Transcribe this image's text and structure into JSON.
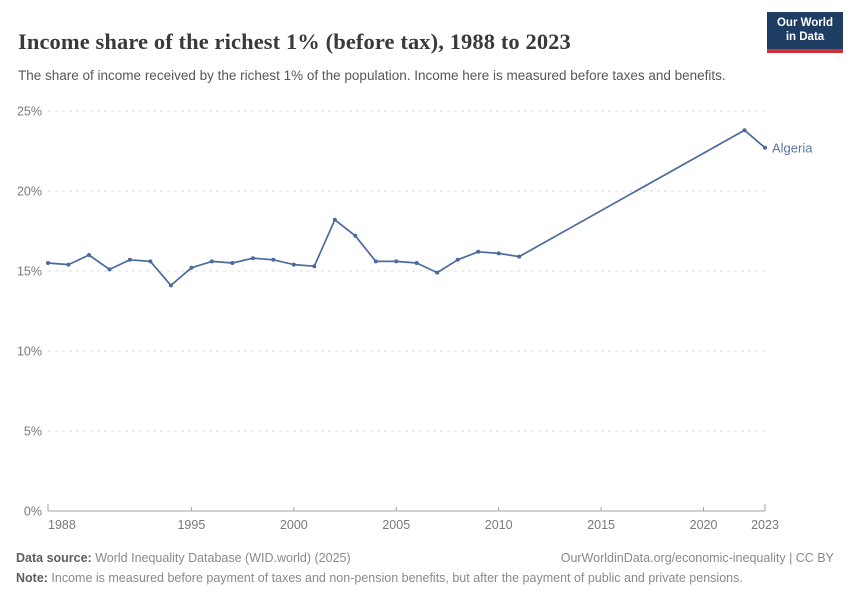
{
  "header": {
    "title": "Income share of the richest 1% (before tax), 1988 to 2023",
    "subtitle": "The share of income received by the richest 1% of the population. Income here is measured before taxes and benefits.",
    "logo": {
      "line1": "Our World",
      "line2": "in Data"
    }
  },
  "chart_data": {
    "type": "line",
    "title": "Income share of the richest 1% (before tax), 1988 to 2023",
    "xlabel": "",
    "ylabel": "",
    "xlim": [
      1988,
      2023
    ],
    "ylim": [
      0,
      25
    ],
    "x_ticks": [
      1988,
      1995,
      2000,
      2005,
      2010,
      2015,
      2020,
      2023
    ],
    "y_ticks": [
      0,
      5,
      10,
      15,
      20,
      25
    ],
    "y_tick_suffix": "%",
    "grid": "horizontal-dashed",
    "legend_position": "end-of-line-label",
    "series": [
      {
        "name": "Algeria",
        "color": "#4C6A9C",
        "x": [
          1988,
          1989,
          1990,
          1991,
          1992,
          1993,
          1994,
          1995,
          1996,
          1997,
          1998,
          1999,
          2000,
          2001,
          2002,
          2003,
          2004,
          2005,
          2006,
          2007,
          2008,
          2009,
          2010,
          2011,
          2022,
          2023
        ],
        "values": [
          15.5,
          15.4,
          16.0,
          15.1,
          15.7,
          15.6,
          14.1,
          15.2,
          15.6,
          15.5,
          15.8,
          15.7,
          15.4,
          15.3,
          18.2,
          17.2,
          15.6,
          15.6,
          15.5,
          14.9,
          15.7,
          16.2,
          16.1,
          15.9,
          23.8,
          22.7
        ]
      }
    ]
  },
  "footer": {
    "datasource_label": "Data source:",
    "datasource_text": " World Inequality Database (WID.world) (2025)",
    "url_text": "OurWorldinData.org/economic-inequality | CC BY",
    "note_label": "Note:",
    "note_text": " Income is measured before payment of taxes and non-pension benefits, but after the payment of public and private pensions."
  },
  "colors": {
    "line": "#4C6A9C",
    "series_label": "#5b73a3",
    "grid": "#dcdcdc",
    "axis": "#a3a3a3",
    "tick_text": "#7a7a7a",
    "title_text": "#3a3a3a",
    "subtitle_text": "#575757",
    "footer_text": "#8a8a8a",
    "logo_bg": "#1d3d63",
    "logo_stripe": "#d13239"
  }
}
